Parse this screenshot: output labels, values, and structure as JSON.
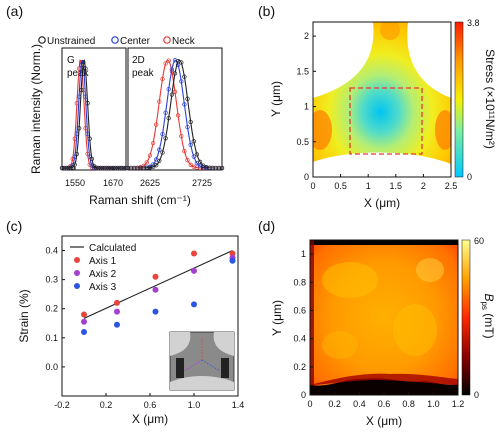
{
  "panel_labels": [
    "(a)",
    "(b)",
    "(c)",
    "(d)"
  ],
  "chart_data": [
    {
      "panel": "(a)",
      "type": "line",
      "ylabel": "Raman intensity (Norm.)",
      "xlabel": "Raman shift (cm⁻¹)",
      "legend": [
        "Unstrained",
        "Center",
        "Neck"
      ],
      "legend_colors": [
        "#222222",
        "#2a3fd6",
        "#e53935"
      ],
      "subplots": [
        {
          "label": "G peak",
          "x_ticks": [
            "1550",
            "1670"
          ],
          "xlim": [
            1520,
            1700
          ],
          "peak_centers": {
            "Unstrained": 1582,
            "Center": 1577,
            "Neck": 1572
          }
        },
        {
          "label": "2D peak",
          "x_ticks": [
            "2625",
            "2725"
          ],
          "xlim": [
            2590,
            2760
          ],
          "peak_centers": {
            "Unstrained": 2683,
            "Center": 2676,
            "Neck": 2662
          }
        }
      ]
    },
    {
      "panel": "(b)",
      "type": "heatmap",
      "xlabel": "X (μm)",
      "ylabel": "Y (μm)",
      "x_ticks": [
        "0",
        "0.5",
        "1",
        "1.5",
        "2",
        "2.5"
      ],
      "y_ticks": [
        "0",
        "0.5",
        "1",
        "1.5",
        "2"
      ],
      "xlim": [
        0,
        2.5
      ],
      "ylim": [
        0,
        2.2
      ],
      "colorbar_label": "Stress (×10¹¹N/m²)",
      "colorbar_ticks": [
        "3.8",
        "0"
      ],
      "colorbar_range": [
        0,
        3.8
      ]
    },
    {
      "panel": "(c)",
      "type": "scatter",
      "xlabel": "X (μm)",
      "ylabel": "Strain (%)",
      "x_ticks": [
        "-0.2",
        "0.2",
        "0.6",
        "1.0",
        "1.4"
      ],
      "y_ticks": [
        "0.0",
        "0.1",
        "0.2",
        "0.3",
        "0.4"
      ],
      "xlim": [
        -0.2,
        1.4
      ],
      "ylim": [
        -0.1,
        0.45
      ],
      "series": [
        {
          "name": "Calculated",
          "type": "line",
          "color": "#222222",
          "x": [
            0.0,
            1.35
          ],
          "y": [
            0.167,
            0.4
          ]
        },
        {
          "name": "Axis 1",
          "color": "#e8453c",
          "x": [
            0.0,
            0.3,
            0.65,
            1.0,
            1.35
          ],
          "y": [
            0.18,
            0.22,
            0.31,
            0.39,
            0.39
          ]
        },
        {
          "name": "Axis 2",
          "color": "#a43fd0",
          "x": [
            0.0,
            0.3,
            0.65,
            1.0,
            1.35
          ],
          "y": [
            0.155,
            0.19,
            0.265,
            0.33,
            0.375
          ]
        },
        {
          "name": "Axis 3",
          "color": "#2c55e0",
          "x": [
            0.0,
            0.3,
            0.65,
            1.0,
            1.35
          ],
          "y": [
            0.12,
            0.145,
            0.19,
            0.215,
            0.365
          ]
        }
      ]
    },
    {
      "panel": "(d)",
      "type": "heatmap",
      "xlabel": "X (μm)",
      "ylabel": "Y (μm)",
      "x_ticks": [
        "0",
        "0.2",
        "0.4",
        "0.6",
        "0.8",
        "1.0",
        "1.2"
      ],
      "y_ticks": [
        "0",
        "0.2",
        "0.4",
        "0.6",
        "0.8",
        "1"
      ],
      "xlim": [
        0,
        1.2
      ],
      "ylim": [
        0,
        1.1
      ],
      "colorbar_label_main": "B",
      "colorbar_label_sub": "ps",
      "colorbar_label_unit": " (mT)",
      "colorbar_ticks": [
        "60",
        "0"
      ],
      "colorbar_range": [
        0,
        60
      ]
    }
  ]
}
